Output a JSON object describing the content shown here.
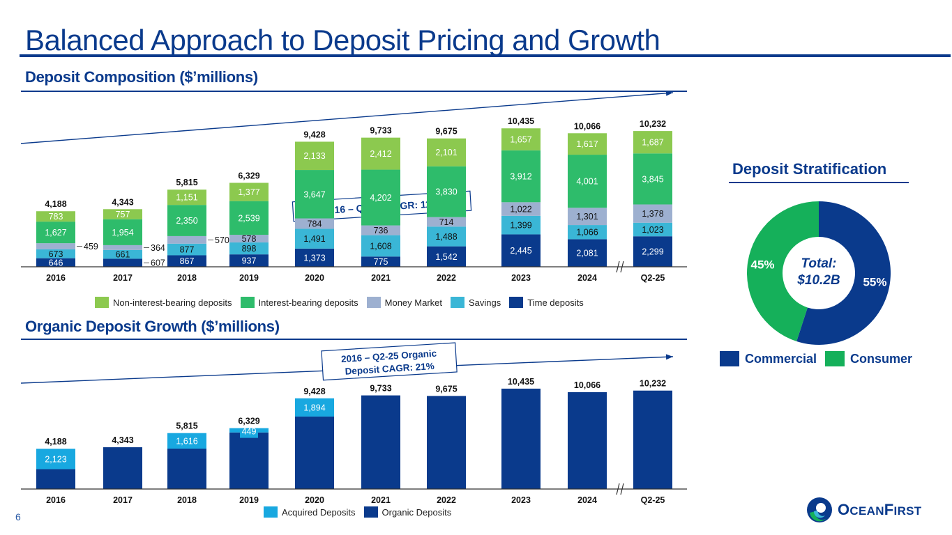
{
  "page": {
    "title": "Balanced Approach to Deposit Pricing and Growth",
    "page_number": "6",
    "logo_text_1": "O",
    "logo_text_2": "CEAN",
    "logo_text_3": "F",
    "logo_text_4": "IRST"
  },
  "colors": {
    "brand_blue": "#0a3a8c",
    "non_interest": "#8cc94f",
    "interest": "#2ebc6b",
    "money_market": "#9db0d0",
    "savings": "#3ab6d6",
    "time": "#0a3a8c",
    "acquired": "#18a8e0",
    "organic": "#0a3a8c",
    "commercial": "#0a3a8c",
    "consumer": "#15b05a"
  },
  "chart_data": [
    {
      "id": "composition",
      "type": "bar",
      "stacked": true,
      "title": "Deposit Composition ($’millions)",
      "callout": "2016 –  Q2-25 CAGR: 11%",
      "categories": [
        "2016",
        "2017",
        "2018",
        "2019",
        "2020",
        "2021",
        "2022",
        "2023",
        "2024",
        "Q2-25"
      ],
      "axis_break_before": "Q2-25",
      "series": [
        {
          "name": "Time deposits",
          "key": "time",
          "values": [
            646,
            607,
            867,
            937,
            1373,
            775,
            1542,
            2445,
            2081,
            2299
          ]
        },
        {
          "name": "Savings",
          "key": "savings",
          "values": [
            673,
            661,
            877,
            898,
            1491,
            1608,
            1488,
            1399,
            1066,
            1023
          ]
        },
        {
          "name": "Money Market",
          "key": "money_market",
          "values": [
            459,
            364,
            570,
            578,
            784,
            736,
            714,
            1022,
            1301,
            1378
          ]
        },
        {
          "name": "Interest-bearing deposits",
          "key": "interest",
          "values": [
            1627,
            1954,
            2350,
            2539,
            3647,
            4202,
            3830,
            3912,
            4001,
            3845
          ]
        },
        {
          "name": "Non-interest-bearing deposits",
          "key": "non_interest",
          "values": [
            783,
            757,
            1151,
            1377,
            2133,
            2412,
            2101,
            1657,
            1617,
            1687
          ]
        }
      ],
      "totals": [
        4188,
        4343,
        5815,
        6329,
        9428,
        9733,
        9675,
        10435,
        10066,
        10232
      ],
      "outside_labels": [
        {
          "category": "2016",
          "series": "Money Market",
          "label": "459"
        },
        {
          "category": "2017",
          "series": "Money Market",
          "label": "364"
        },
        {
          "category": "2017",
          "series": "Time deposits",
          "label": "607"
        },
        {
          "category": "2018",
          "series": "Money Market",
          "label": "570"
        }
      ],
      "legend": [
        "Non-interest-bearing deposits",
        "Interest-bearing deposits",
        "Money Market",
        "Savings",
        "Time deposits"
      ],
      "legend_placement": "bottom",
      "ylim": [
        0,
        10500
      ],
      "grid": false
    },
    {
      "id": "organic",
      "type": "bar",
      "stacked": true,
      "title": "Organic Deposit Growth ($’millions)",
      "callout_line1": "2016 – Q2-25 Organic",
      "callout_line2": "Deposit CAGR: 21%",
      "categories": [
        "2016",
        "2017",
        "2018",
        "2019",
        "2020",
        "2021",
        "2022",
        "2023",
        "2024",
        "Q2-25"
      ],
      "axis_break_before": "Q2-25",
      "series": [
        {
          "name": "Organic Deposits",
          "key": "organic",
          "values": [
            2065,
            4343,
            4199,
            5880,
            7534,
            9733,
            9675,
            10435,
            10066,
            10232
          ]
        },
        {
          "name": "Acquired Deposits",
          "key": "acquired",
          "values": [
            2123,
            0,
            1616,
            449,
            1894,
            0,
            0,
            0,
            0,
            0
          ]
        }
      ],
      "acquired_labels": [
        "2,123",
        "",
        "1,616",
        "449",
        "1,894",
        "",
        "",
        "",
        "",
        ""
      ],
      "totals": [
        4188,
        4343,
        5815,
        6329,
        9428,
        9733,
        9675,
        10435,
        10066,
        10232
      ],
      "legend": [
        "Acquired Deposits",
        "Organic Deposits"
      ],
      "legend_placement": "bottom",
      "ylim": [
        0,
        10500
      ],
      "grid": false
    },
    {
      "id": "stratification",
      "type": "pie",
      "donut": true,
      "title": "Deposit Stratification",
      "center_label_1": "Total:",
      "center_label_2": "$10.2B",
      "slices": [
        {
          "name": "Commercial",
          "key": "commercial",
          "value": 55,
          "label": "55%"
        },
        {
          "name": "Consumer",
          "key": "consumer",
          "value": 45,
          "label": "45%"
        }
      ],
      "legend": [
        "Commercial",
        "Consumer"
      ],
      "legend_placement": "bottom"
    }
  ]
}
